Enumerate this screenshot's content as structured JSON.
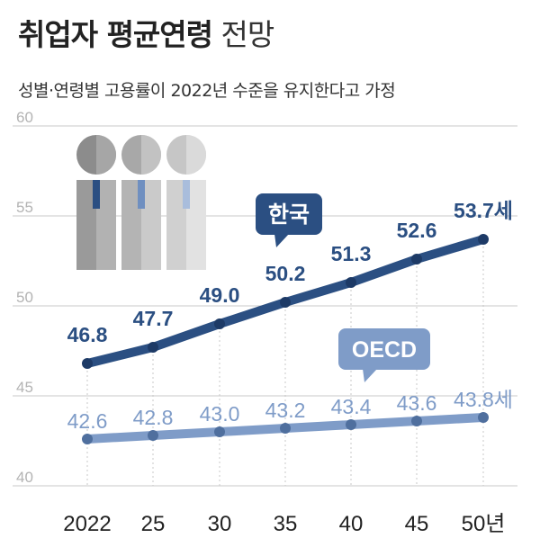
{
  "header": {
    "title_bold": "취업자 평균연령",
    "title_light": "전망",
    "subtitle": "성별·연령별 고용률이 2022년 수준을 유지한다고 가정"
  },
  "colors": {
    "korea_line": "#2b4f82",
    "korea_marker": "#1d3a66",
    "oecd_line": "#7f9cc8",
    "oecd_marker": "#4f6f9e",
    "grid": "#c9c9c9",
    "axis_label": "#b3b3b3",
    "x_label": "#222222"
  },
  "chart_data": {
    "type": "line",
    "x": [
      "2022",
      "25",
      "30",
      "35",
      "40",
      "45",
      "50년"
    ],
    "ylim": [
      40,
      60
    ],
    "yticks": [
      40,
      45,
      50,
      55,
      60
    ],
    "grid": true,
    "series": [
      {
        "name": "한국",
        "values": [
          46.8,
          47.7,
          49.0,
          50.2,
          51.3,
          52.6,
          53.7
        ],
        "labels": [
          "46.8",
          "47.7",
          "49.0",
          "50.2",
          "51.3",
          "52.6",
          "53.7세"
        ]
      },
      {
        "name": "OECD",
        "values": [
          42.6,
          42.8,
          43.0,
          43.2,
          43.4,
          43.6,
          43.8
        ],
        "labels": [
          "42.6",
          "42.8",
          "43.0",
          "43.2",
          "43.4",
          "43.6",
          "43.8세"
        ]
      }
    ]
  }
}
